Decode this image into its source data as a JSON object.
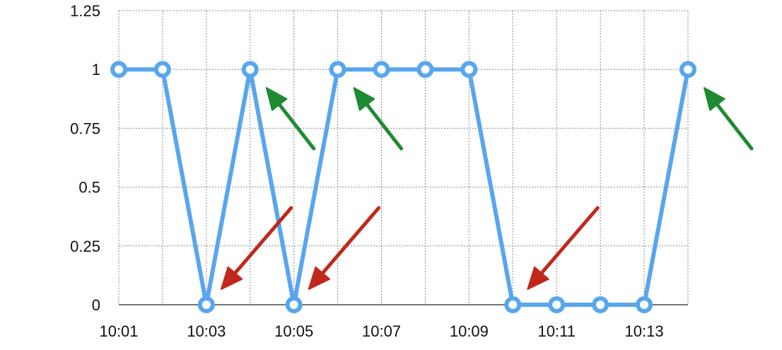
{
  "chart_data": {
    "type": "line",
    "title": "",
    "xlabel": "",
    "ylabel": "",
    "x": [
      "10:01",
      "10:02",
      "10:03",
      "10:04",
      "10:05",
      "10:06",
      "10:07",
      "10:08",
      "10:09",
      "10:10",
      "10:11",
      "10:12",
      "10:13",
      "10:14"
    ],
    "series": [
      {
        "values": [
          1,
          1,
          0,
          1,
          0,
          1,
          1,
          1,
          1,
          0,
          0,
          0,
          0,
          1
        ]
      }
    ],
    "xtick_labels": [
      "10:01",
      "10:03",
      "10:05",
      "10:07",
      "10:09",
      "10:11",
      "10:13"
    ],
    "yticks": [
      0,
      0.25,
      0.5,
      0.75,
      1,
      1.25
    ],
    "ytick_labels": [
      "0",
      "0.25",
      "0.5",
      "0.75",
      "1",
      "1.25"
    ],
    "ylim": [
      0,
      1.25
    ],
    "grid": true,
    "annotations": [
      {
        "kind": "arrow",
        "color": "#1e8a32",
        "points_to": "10:04"
      },
      {
        "kind": "arrow",
        "color": "#1e8a32",
        "points_to": "10:06"
      },
      {
        "kind": "arrow",
        "color": "#1e8a32",
        "points_to": "10:14"
      },
      {
        "kind": "arrow",
        "color": "#c0281c",
        "points_to": "10:03"
      },
      {
        "kind": "arrow",
        "color": "#c0281c",
        "points_to": "10:05"
      },
      {
        "kind": "arrow",
        "color": "#c0281c",
        "points_to": "10:10"
      }
    ],
    "colors": {
      "line": "#58a6ee",
      "marker_fill": "#ffffff",
      "up_arrow": "#1e8a32",
      "down_arrow": "#c0281c"
    }
  }
}
